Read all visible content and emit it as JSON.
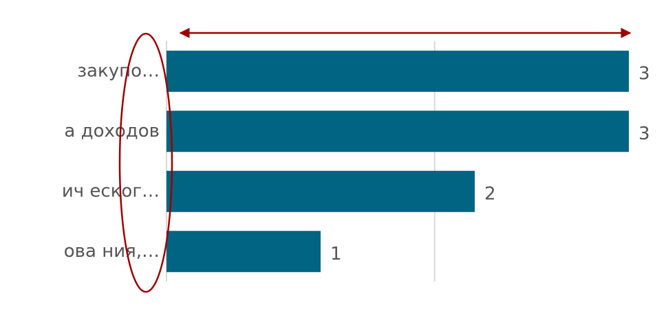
{
  "chart_data": {
    "type": "hbar",
    "categories": [
      "закупо…",
      "а доходов",
      "ич еског…",
      "ова ния,…"
    ],
    "values": [
      3,
      3,
      2,
      1
    ],
    "color": "#006482",
    "xlim": [
      0,
      3
    ],
    "gridlines": [
      0,
      1.74
    ],
    "grid": true
  }
}
